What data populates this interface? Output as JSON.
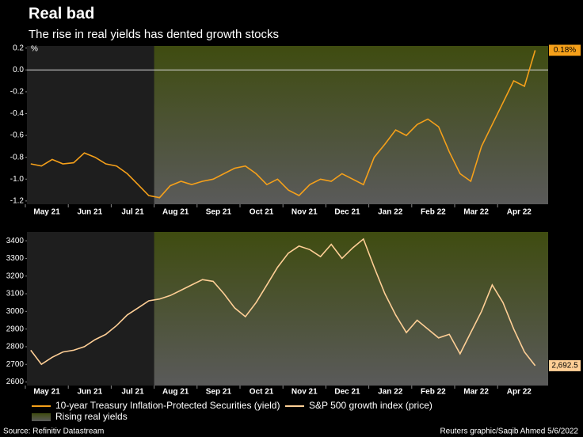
{
  "title": "Real bad",
  "subtitle": "The rise in real yields has dented growth stocks",
  "source": "Source: Refinitiv Datastream",
  "credit": "Reuters graphic/Saqib Ahmed 5/6/2022",
  "highlight": {
    "from": "Aug 21",
    "label": "Rising real yields",
    "color": "#3f4c10"
  },
  "chart_data": [
    {
      "type": "line",
      "unit": "%",
      "x": [
        "May 21",
        "May 21",
        "May 21",
        "May 21",
        "Jun 21",
        "Jun 21",
        "Jun 21",
        "Jun 21",
        "Jul 21",
        "Jul 21",
        "Jul 21",
        "Jul 21",
        "Aug 21",
        "Aug 21",
        "Aug 21",
        "Aug 21",
        "Sep 21",
        "Sep 21",
        "Sep 21",
        "Sep 21",
        "Oct 21",
        "Oct 21",
        "Oct 21",
        "Oct 21",
        "Nov 21",
        "Nov 21",
        "Nov 21",
        "Nov 21",
        "Dec 21",
        "Dec 21",
        "Dec 21",
        "Dec 21",
        "Jan 22",
        "Jan 22",
        "Jan 22",
        "Jan 22",
        "Feb 22",
        "Feb 22",
        "Feb 22",
        "Feb 22",
        "Mar 22",
        "Mar 22",
        "Mar 22",
        "Mar 22",
        "Apr 22",
        "Apr 22",
        "Apr 22",
        "Apr 22"
      ],
      "xticks": [
        "May 21",
        "Jun 21",
        "Jul 21",
        "Aug 21",
        "Sep 21",
        "Oct 21",
        "Nov 21",
        "Dec 21",
        "Jan 22",
        "Feb 22",
        "Mar 22",
        "Apr 22"
      ],
      "ylim": [
        -1.23,
        0.22
      ],
      "yticks": [
        0.2,
        {
          "value": 0,
          "label": "0.0"
        },
        -0.2,
        -0.4,
        -0.6,
        -0.8,
        {
          "value": -1,
          "label": "-1.0"
        },
        -1.2
      ],
      "series": [
        {
          "name": "10-year Treasury Inflation-Protected Securities (yield)",
          "color": "#f5a01a",
          "last_label": "0.18%",
          "values": [
            -0.86,
            -0.88,
            -0.82,
            -0.86,
            -0.85,
            -0.76,
            -0.8,
            -0.86,
            -0.88,
            -0.95,
            -1.05,
            -1.15,
            -1.17,
            -1.06,
            -1.02,
            -1.05,
            -1.02,
            -1.0,
            -0.95,
            -0.9,
            -0.88,
            -0.95,
            -1.05,
            -1.0,
            -1.1,
            -1.15,
            -1.05,
            -1.0,
            -1.02,
            -0.95,
            -1.0,
            -1.05,
            -0.8,
            -0.68,
            -0.55,
            -0.6,
            -0.5,
            -0.45,
            -0.52,
            -0.75,
            -0.95,
            -1.02,
            -0.7,
            -0.5,
            -0.3,
            -0.1,
            -0.15,
            0.18
          ]
        }
      ]
    },
    {
      "type": "line",
      "x": [
        "May 21",
        "May 21",
        "May 21",
        "May 21",
        "Jun 21",
        "Jun 21",
        "Jun 21",
        "Jun 21",
        "Jul 21",
        "Jul 21",
        "Jul 21",
        "Jul 21",
        "Aug 21",
        "Aug 21",
        "Aug 21",
        "Aug 21",
        "Sep 21",
        "Sep 21",
        "Sep 21",
        "Sep 21",
        "Oct 21",
        "Oct 21",
        "Oct 21",
        "Oct 21",
        "Nov 21",
        "Nov 21",
        "Nov 21",
        "Nov 21",
        "Dec 21",
        "Dec 21",
        "Dec 21",
        "Dec 21",
        "Jan 22",
        "Jan 22",
        "Jan 22",
        "Jan 22",
        "Feb 22",
        "Feb 22",
        "Feb 22",
        "Feb 22",
        "Mar 22",
        "Mar 22",
        "Mar 22",
        "Mar 22",
        "Apr 22",
        "Apr 22",
        "Apr 22",
        "Apr 22"
      ],
      "xticks": [
        "May 21",
        "Jun 21",
        "Jul 21",
        "Aug 21",
        "Sep 21",
        "Oct 21",
        "Nov 21",
        "Dec 21",
        "Jan 22",
        "Feb 22",
        "Mar 22",
        "Apr 22"
      ],
      "ylim": [
        2580,
        3450
      ],
      "yticks": [
        2600,
        2700,
        2800,
        2900,
        3000,
        3100,
        3200,
        3300,
        3400
      ],
      "series": [
        {
          "name": "S&P 500 growth index (price)",
          "color": "#ffcf96",
          "last_label": "2,692.5",
          "values": [
            2780,
            2700,
            2740,
            2770,
            2780,
            2800,
            2840,
            2870,
            2920,
            2980,
            3020,
            3060,
            3070,
            3090,
            3120,
            3150,
            3180,
            3170,
            3100,
            3020,
            2970,
            3050,
            3150,
            3250,
            3330,
            3370,
            3350,
            3310,
            3380,
            3300,
            3360,
            3410,
            3250,
            3100,
            2980,
            2880,
            2950,
            2900,
            2850,
            2870,
            2760,
            2880,
            3000,
            3150,
            3050,
            2900,
            2770,
            2692.5
          ]
        }
      ]
    }
  ]
}
